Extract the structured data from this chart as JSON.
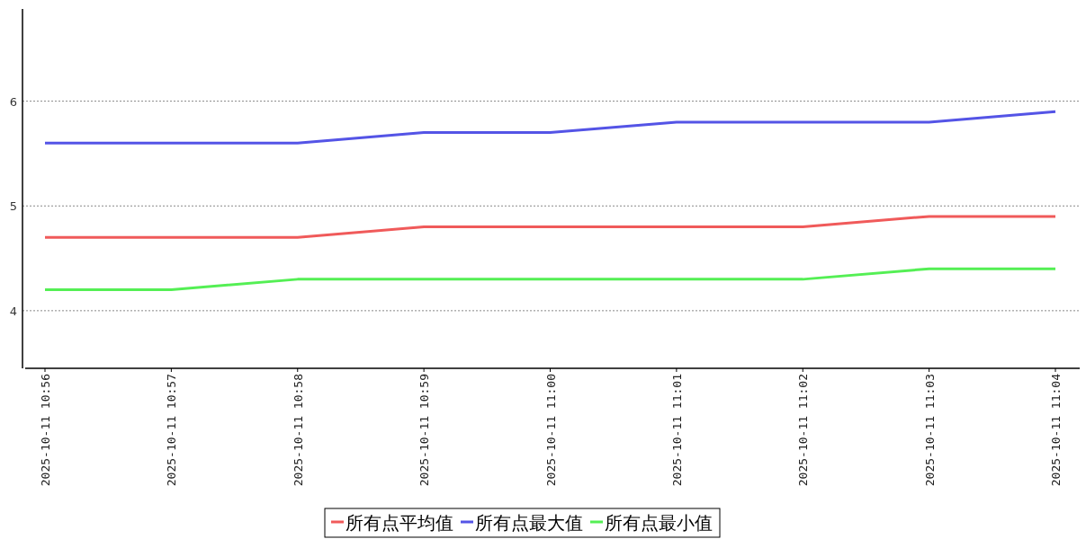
{
  "chart_data": {
    "type": "line",
    "categories": [
      "2025-10-11 10:56",
      "2025-10-11 10:57",
      "2025-10-11 10:58",
      "2025-10-11 10:59",
      "2025-10-11 11:00",
      "2025-10-11 11:01",
      "2025-10-11 11:02",
      "2025-10-11 11:03",
      "2025-10-11 11:04"
    ],
    "series": [
      {
        "name": "所有点平均值",
        "color": "#f05a5a",
        "values": [
          4.7,
          4.7,
          4.7,
          4.8,
          4.8,
          4.8,
          4.8,
          4.9,
          4.9
        ]
      },
      {
        "name": "所有点最大值",
        "color": "#5454e6",
        "values": [
          5.6,
          5.6,
          5.6,
          5.7,
          5.7,
          5.8,
          5.8,
          5.8,
          5.9
        ]
      },
      {
        "name": "所有点最小值",
        "color": "#54ef54",
        "values": [
          4.2,
          4.2,
          4.3,
          4.3,
          4.3,
          4.3,
          4.3,
          4.4,
          4.4
        ]
      }
    ],
    "ylim": [
      3.45,
      6.88
    ],
    "yticks": [
      4,
      5,
      6
    ],
    "grid": "y",
    "legend": "bottom",
    "marker": "none",
    "line_style": "solid"
  }
}
